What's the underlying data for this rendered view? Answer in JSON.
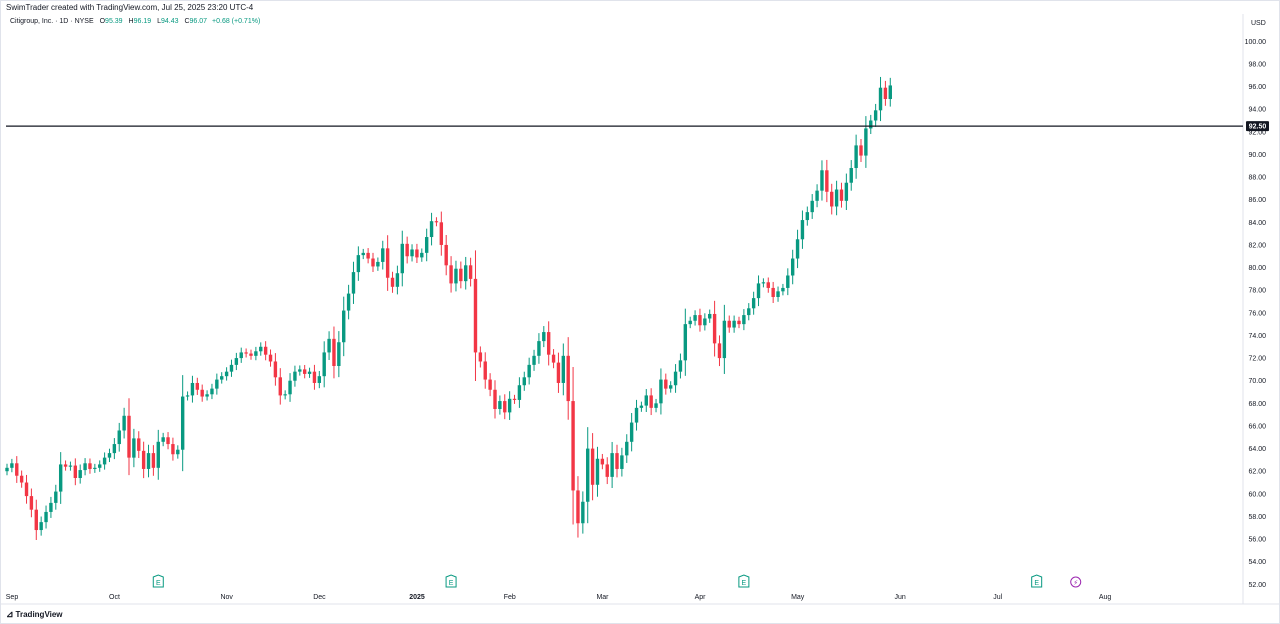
{
  "header": {
    "caption": "SwimTrader created with TradingView.com, Jul 25, 2025 23:20 UTC-4"
  },
  "legend": {
    "symbol": "Citigroup, Inc. · 1D · NYSE",
    "open_label": "O",
    "open": "95.39",
    "high_label": "H",
    "high": "96.19",
    "low_label": "L",
    "low": "94.43",
    "close_label": "C",
    "close": "96.07",
    "change": "+0.68 (+0.71%)"
  },
  "axis": {
    "currency": "USD"
  },
  "footer": {
    "brand": "TradingView",
    "logo_icon": "tradingview-logo-icon"
  },
  "colors": {
    "up": "#089981",
    "down": "#f23645",
    "line": "#131722",
    "axis_text": "#131722",
    "earnings": "#089981",
    "flash": "#9c27b0"
  },
  "chart_data": {
    "type": "candlestick",
    "title": "Citigroup, Inc. · 1D · NYSE",
    "ylabel": "USD",
    "ylim": [
      51.5,
      101
    ],
    "y_ticks": [
      "52.00",
      "54.00",
      "56.00",
      "58.00",
      "60.00",
      "62.00",
      "64.00",
      "66.00",
      "68.00",
      "70.00",
      "72.00",
      "74.00",
      "76.00",
      "78.00",
      "80.00",
      "82.00",
      "84.00",
      "86.00",
      "88.00",
      "90.00",
      "92.00",
      "94.00",
      "96.00",
      "98.00",
      "100.00"
    ],
    "x_labels": [
      {
        "label": "Sep",
        "index": 0
      },
      {
        "label": "Oct",
        "index": 21
      },
      {
        "label": "Nov",
        "index": 44
      },
      {
        "label": "Dec",
        "index": 63
      },
      {
        "label": "2025",
        "index": 83
      },
      {
        "label": "Feb",
        "index": 102
      },
      {
        "label": "Mar",
        "index": 121
      },
      {
        "label": "Apr",
        "index": 141
      },
      {
        "label": "May",
        "index": 161
      },
      {
        "label": "Jun",
        "index": 182
      },
      {
        "label": "Jul",
        "index": 202
      },
      {
        "label": "Aug",
        "index": 224
      }
    ],
    "horizontal_line": {
      "value": 92.5,
      "label": "92.50"
    },
    "earnings_markers": [
      {
        "index": 31,
        "label": "E"
      },
      {
        "index": 91,
        "label": "E"
      },
      {
        "index": 151,
        "label": "E"
      },
      {
        "index": 211,
        "label": "E"
      }
    ],
    "event_marker": {
      "index": 219,
      "label": "⚡"
    },
    "closes": [
      62.3,
      62.7,
      61.6,
      61.0,
      59.8,
      58.6,
      56.8,
      57.5,
      58.4,
      59.2,
      60.2,
      62.6,
      62.4,
      62.5,
      61.4,
      62.1,
      62.7,
      62.2,
      62.3,
      62.6,
      63.2,
      63.6,
      64.4,
      65.6,
      66.9,
      63.2,
      64.9,
      63.8,
      62.2,
      63.6,
      62.3,
      64.6,
      65.0,
      64.4,
      63.5,
      63.9,
      68.6,
      68.7,
      69.8,
      69.2,
      68.6,
      68.8,
      69.3,
      70.1,
      70.4,
      70.8,
      71.4,
      72.0,
      72.5,
      72.4,
      72.2,
      72.6,
      73.0,
      72.3,
      71.7,
      70.3,
      68.7,
      68.8,
      70.0,
      70.8,
      71.0,
      70.6,
      70.8,
      69.8,
      70.4,
      72.5,
      73.7,
      71.3,
      73.4,
      76.2,
      77.7,
      79.6,
      81.1,
      81.3,
      80.8,
      80.1,
      80.5,
      81.7,
      79.1,
      78.3,
      79.5,
      82.1,
      81.0,
      81.6,
      80.9,
      81.3,
      82.7,
      84.1,
      84.0,
      82.0,
      80.2,
      78.6,
      79.9,
      78.8,
      80.2,
      79.0,
      72.5,
      71.7,
      70.1,
      69.2,
      67.5,
      68.2,
      67.2,
      68.4,
      68.3,
      69.6,
      70.3,
      71.4,
      72.2,
      73.5,
      74.3,
      72.3,
      71.6,
      69.8,
      72.2,
      68.2,
      60.3,
      57.4,
      59.3,
      64.0,
      60.8,
      63.1,
      62.6,
      61.5,
      63.6,
      62.2,
      63.4,
      64.6,
      66.3,
      67.6,
      67.8,
      68.7,
      67.6,
      68.0,
      70.1,
      69.3,
      69.6,
      70.8,
      71.8,
      75.0,
      75.3,
      75.8,
      74.9,
      75.5,
      75.9,
      73.3,
      72.0,
      75.3,
      74.7,
      75.3,
      75.0,
      75.8,
      76.4,
      77.3,
      78.6,
      78.7,
      78.2,
      77.4,
      77.9,
      78.2,
      79.3,
      80.8,
      82.5,
      84.2,
      84.9,
      85.9,
      86.8,
      88.6,
      86.7,
      85.4,
      86.9,
      85.9,
      87.5,
      88.8,
      90.8,
      89.9,
      92.3,
      93.0,
      93.9,
      95.9,
      94.9,
      96.1
    ]
  }
}
